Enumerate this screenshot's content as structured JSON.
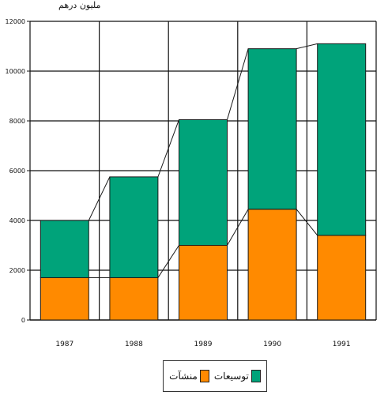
{
  "unit_label": "مليون درهم",
  "colors": {
    "grid": "#111111",
    "bottom": "#FF8A00",
    "top": "#00A37A",
    "edge": "#1a1a1a"
  },
  "chart_data": {
    "type": "bar",
    "stacked": true,
    "categories": [
      "1987",
      "1988",
      "1989",
      "1990",
      "1991"
    ],
    "series": [
      {
        "name": "منشآت",
        "values": [
          1700,
          1700,
          3000,
          4450,
          3400
        ]
      },
      {
        "name": "توسيعات",
        "values": [
          2300,
          4050,
          5050,
          6450,
          7700
        ]
      }
    ],
    "ylim": [
      0,
      12000
    ],
    "yticks": [
      "0",
      "2000",
      "4000",
      "6000",
      "8000",
      "10000",
      "12000"
    ],
    "grid": true,
    "legend_position": "bottom",
    "connector_lines": true
  },
  "legend": [
    {
      "label": "توسيعات",
      "color": "#00A37A"
    },
    {
      "label": "منشآت",
      "color": "#FF8A00"
    }
  ]
}
